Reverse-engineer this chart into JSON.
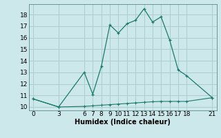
{
  "x_upper": [
    0,
    3,
    6,
    7,
    8,
    9,
    10,
    11,
    12,
    13,
    14,
    15,
    16,
    17,
    18,
    21
  ],
  "y_upper": [
    10.7,
    10.0,
    13.0,
    11.1,
    13.5,
    17.1,
    16.4,
    17.2,
    17.5,
    18.5,
    17.35,
    17.8,
    15.8,
    13.2,
    12.7,
    10.8
  ],
  "x_lower": [
    0,
    3,
    6,
    7,
    8,
    9,
    10,
    11,
    12,
    13,
    14,
    15,
    16,
    17,
    18,
    21
  ],
  "y_lower": [
    10.7,
    10.0,
    10.05,
    10.1,
    10.15,
    10.2,
    10.25,
    10.3,
    10.35,
    10.4,
    10.45,
    10.48,
    10.48,
    10.48,
    10.48,
    10.8
  ],
  "line_color": "#1a7a6e",
  "bg_color": "#cde8ea",
  "grid_color": "#aacdd0",
  "xlabel": "Humidex (Indice chaleur)",
  "xticks": [
    0,
    3,
    6,
    7,
    8,
    9,
    10,
    11,
    12,
    13,
    14,
    15,
    16,
    17,
    18,
    21
  ],
  "yticks": [
    10,
    11,
    12,
    13,
    14,
    15,
    16,
    17,
    18
  ],
  "xlim": [
    -0.5,
    21.5
  ],
  "ylim": [
    9.7,
    18.9
  ],
  "xlabel_fontsize": 7,
  "tick_fontsize": 6.5,
  "marker": "+"
}
